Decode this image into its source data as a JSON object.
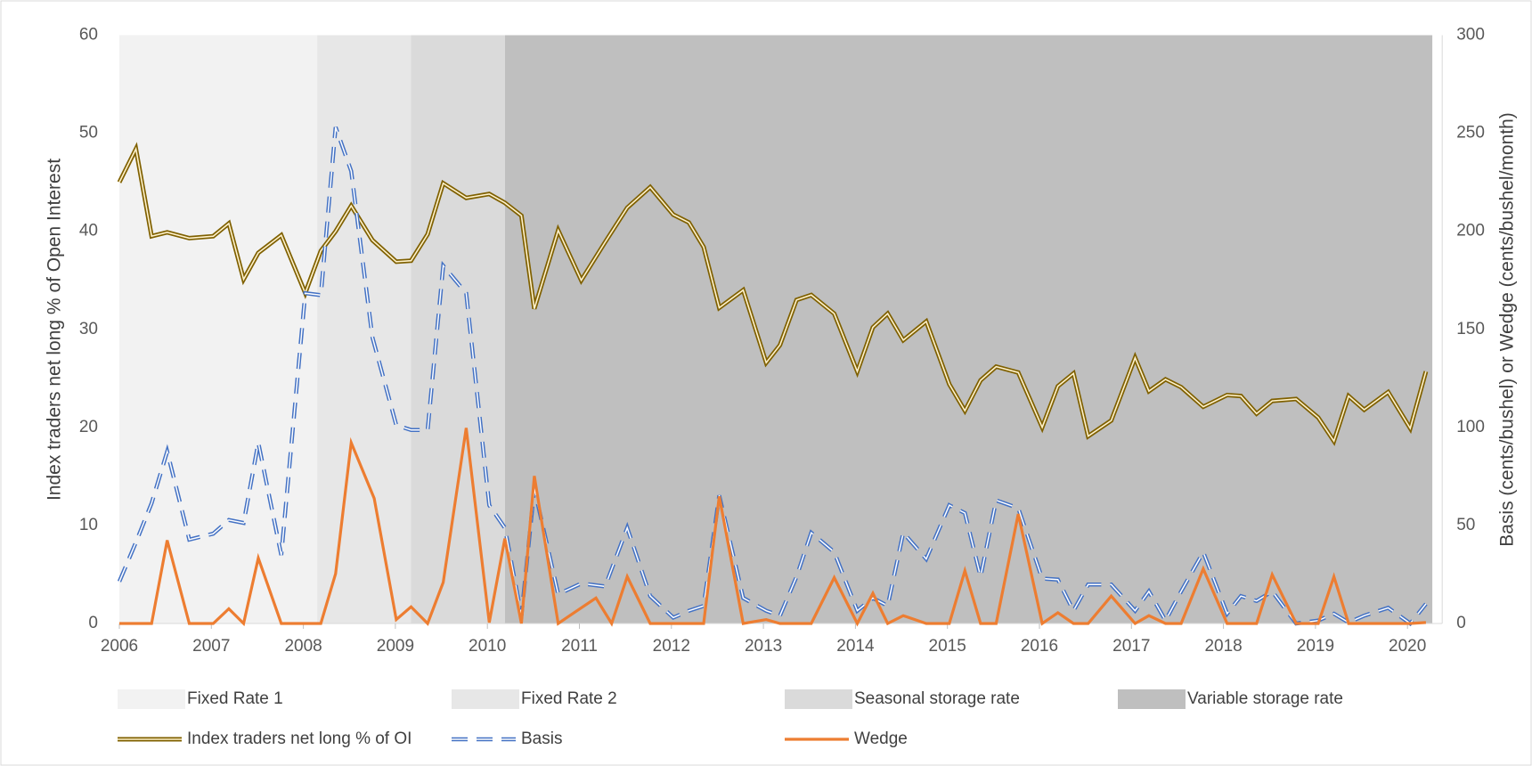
{
  "chart_data": {
    "type": "line",
    "y_label": "Index traders net long % of Open Interest",
    "y2_label": "Basis (cents/bushel) or Wedge (cents/bushel/month)",
    "xlim": [
      2006,
      2020.3
    ],
    "xticks": [
      2006,
      2007,
      2008,
      2009,
      2010,
      2011,
      2012,
      2013,
      2014,
      2015,
      2016,
      2017,
      2018,
      2019,
      2020
    ],
    "ylim": [
      0,
      60
    ],
    "yticks": [
      0,
      10,
      20,
      30,
      40,
      50,
      60
    ],
    "y2lim": [
      0,
      300
    ],
    "y2ticks": [
      0,
      50,
      100,
      150,
      200,
      250,
      300
    ],
    "bands": [
      {
        "name": "Fixed Rate 1",
        "color": "#f2f2f2",
        "x": [
          2006,
          2008.15
        ]
      },
      {
        "name": "Fixed Rate 2",
        "color": "#e7e7e7",
        "x": [
          2008.15,
          2009.17
        ]
      },
      {
        "name": "Seasonal storage rate",
        "color": "#dadada",
        "x": [
          2009.17,
          2010.19
        ]
      },
      {
        "name": "Variable storage rate",
        "color": "#bfbfbf",
        "x": [
          2010.19,
          2020.27
        ]
      }
    ],
    "series": [
      {
        "name": "Index traders net long % of OI",
        "color": "#7f6000",
        "style": "double",
        "x": [
          2006.0,
          2006.18,
          2006.35,
          2006.52,
          2006.76,
          2007.02,
          2007.19,
          2007.35,
          2007.51,
          2007.76,
          2008.02,
          2008.19,
          2008.35,
          2008.52,
          2008.75,
          2009.01,
          2009.17,
          2009.35,
          2009.52,
          2009.77,
          2010.02,
          2010.19,
          2010.37,
          2010.51,
          2010.77,
          2011.02,
          2011.28,
          2011.52,
          2011.77,
          2012.02,
          2012.19,
          2012.35,
          2012.52,
          2012.78,
          2013.03,
          2013.18,
          2013.36,
          2013.52,
          2013.77,
          2014.02,
          2014.19,
          2014.35,
          2014.52,
          2014.77,
          2015.02,
          2015.19,
          2015.36,
          2015.53,
          2015.77,
          2016.03,
          2016.2,
          2016.37,
          2016.53,
          2016.78,
          2017.04,
          2017.19,
          2017.37,
          2017.54,
          2017.78,
          2018.04,
          2018.19,
          2018.36,
          2018.53,
          2018.79,
          2019.03,
          2019.2,
          2019.36,
          2019.53,
          2019.79,
          2020.03,
          2020.2
        ],
        "values": [
          45,
          48.4,
          39.5,
          39.9,
          39.3,
          39.5,
          40.8,
          35.1,
          37.8,
          39.6,
          33.7,
          38,
          40,
          42.6,
          39.1,
          36.9,
          37,
          39.7,
          44.9,
          43.4,
          43.8,
          42.9,
          41.6,
          32.1,
          40.1,
          35,
          38.9,
          42.4,
          44.5,
          41.7,
          40.9,
          38.4,
          32.2,
          34,
          26.6,
          28.4,
          33,
          33.5,
          31.6,
          25.7,
          30.2,
          31.6,
          28.9,
          30.8,
          24.4,
          21.7,
          24.8,
          26.2,
          25.6,
          20,
          24.2,
          25.5,
          19.1,
          20.7,
          27.1,
          23.7,
          24.9,
          24.1,
          22.1,
          23.3,
          23.2,
          21.4,
          22.7,
          22.9,
          21,
          18.6,
          23.2,
          21.8,
          23.6,
          19.9,
          25.7
        ]
      },
      {
        "name": "Basis",
        "color": "#4472c4",
        "style": "dashed-double",
        "axis": "y2",
        "x": [
          2006.0,
          2006.18,
          2006.35,
          2006.52,
          2006.76,
          2007.02,
          2007.19,
          2007.35,
          2007.51,
          2007.76,
          2008.02,
          2008.19,
          2008.35,
          2008.52,
          2008.75,
          2009.01,
          2009.17,
          2009.35,
          2009.52,
          2009.77,
          2010.02,
          2010.19,
          2010.37,
          2010.51,
          2010.77,
          2011.02,
          2011.28,
          2011.52,
          2011.77,
          2012.02,
          2012.19,
          2012.35,
          2012.52,
          2012.78,
          2013.03,
          2013.18,
          2013.36,
          2013.52,
          2013.77,
          2014.02,
          2014.19,
          2014.35,
          2014.52,
          2014.77,
          2015.02,
          2015.19,
          2015.36,
          2015.53,
          2015.77,
          2016.03,
          2016.2,
          2016.37,
          2016.53,
          2016.78,
          2017.04,
          2017.19,
          2017.37,
          2017.54,
          2017.78,
          2018.04,
          2018.19,
          2018.36,
          2018.53,
          2018.79,
          2019.03,
          2019.2,
          2019.36,
          2019.53,
          2019.79,
          2020.03,
          2020.2
        ],
        "values": [
          21.4,
          41.4,
          61.3,
          87.7,
          42.8,
          45.8,
          52.8,
          51.3,
          92.2,
          34.9,
          168.4,
          167.4,
          253.1,
          230.7,
          146,
          101.1,
          98.7,
          98.7,
          182.4,
          168.4,
          60.3,
          48.8,
          4,
          68.8,
          15,
          20.4,
          18.9,
          48.8,
          14,
          3,
          6.5,
          9,
          65.3,
          13,
          6.5,
          4,
          23.9,
          46.3,
          36.4,
          6.5,
          13,
          9,
          46.3,
          32.9,
          60.3,
          56.3,
          23.9,
          62.8,
          58.8,
          22.9,
          22.4,
          6.5,
          19.9,
          19.9,
          6.5,
          16.4,
          1.5,
          16.4,
          36.4,
          5,
          14,
          11.5,
          16.4,
          0,
          1.5,
          5,
          0.5,
          4,
          8,
          0,
          10
        ]
      },
      {
        "name": "Wedge",
        "color": "#ed7d31",
        "style": "solid",
        "axis": "y2",
        "x": [
          2006.0,
          2006.35,
          2006.52,
          2006.76,
          2007.02,
          2007.19,
          2007.35,
          2007.51,
          2007.76,
          2008.19,
          2008.35,
          2008.52,
          2008.77,
          2009.01,
          2009.17,
          2009.35,
          2009.52,
          2009.77,
          2010.02,
          2010.19,
          2010.37,
          2010.51,
          2010.77,
          2011.02,
          2011.18,
          2011.35,
          2011.52,
          2011.77,
          2012.02,
          2012.35,
          2012.52,
          2012.78,
          2013.03,
          2013.18,
          2013.52,
          2013.77,
          2014.02,
          2014.19,
          2014.35,
          2014.52,
          2014.77,
          2015.02,
          2015.19,
          2015.36,
          2015.53,
          2015.77,
          2016.03,
          2016.2,
          2016.37,
          2016.53,
          2016.78,
          2017.04,
          2017.19,
          2017.37,
          2017.54,
          2017.78,
          2018.04,
          2018.36,
          2018.53,
          2018.79,
          2019.03,
          2019.2,
          2019.36,
          2020.03,
          2020.2
        ],
        "values": [
          0,
          0,
          42.4,
          0,
          0,
          7.5,
          0,
          33.4,
          0,
          0,
          25.4,
          92.2,
          63.8,
          2,
          8.5,
          0,
          21,
          99.7,
          0.5,
          43.3,
          0,
          75.2,
          0,
          8,
          13,
          0,
          23.9,
          0,
          0,
          0,
          64.8,
          0,
          2,
          0,
          0,
          23.4,
          0,
          15.4,
          0,
          4,
          0,
          0,
          26.9,
          0,
          0,
          55.8,
          0,
          5.5,
          0,
          0,
          14,
          0,
          4,
          0,
          0,
          27.9,
          0,
          0,
          24.9,
          0,
          0,
          23.9,
          0,
          0,
          0.5
        ]
      }
    ]
  }
}
